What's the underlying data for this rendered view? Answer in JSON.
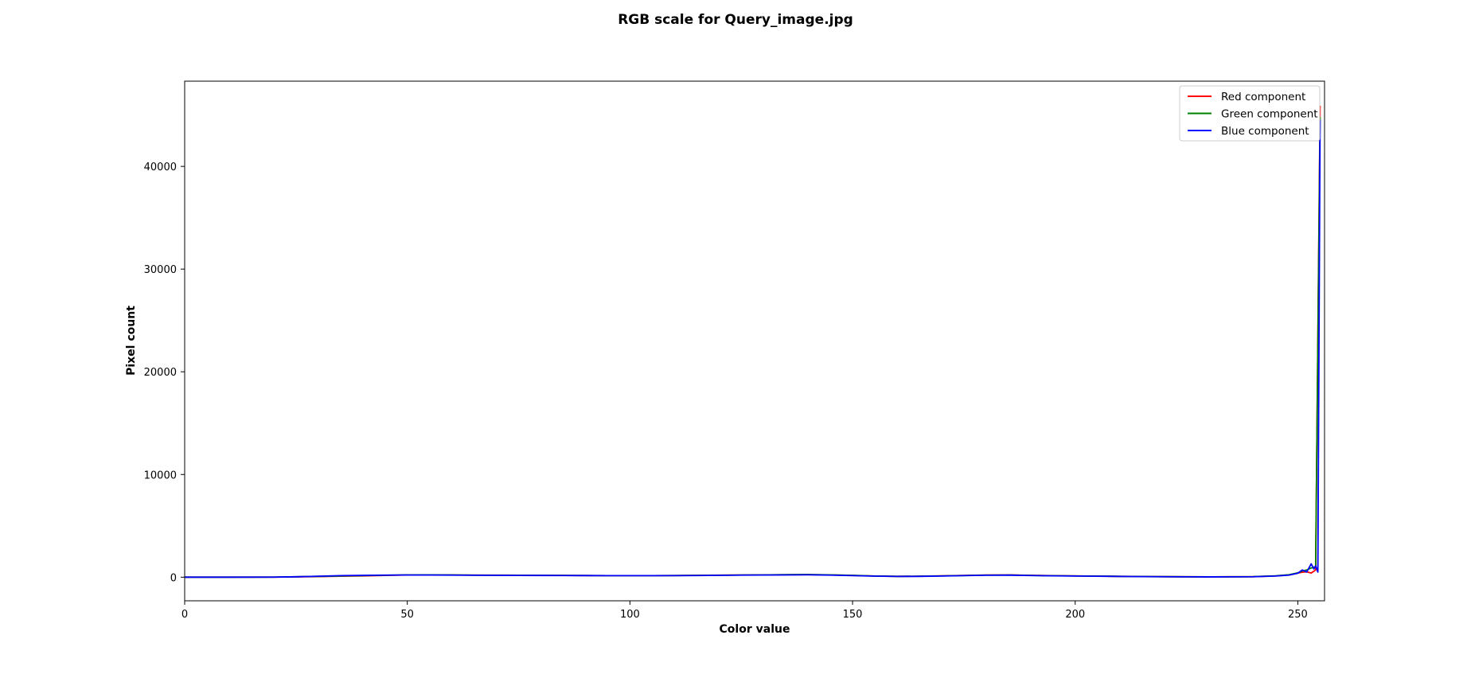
{
  "chart_data": {
    "type": "line",
    "title": "RGB scale for Query_image.jpg",
    "xlabel": "Color value",
    "ylabel": "Pixel count",
    "xlim": [
      0,
      256
    ],
    "ylim": [
      -2300,
      48300
    ],
    "xticks": [
      0,
      50,
      100,
      150,
      200,
      250
    ],
    "yticks": [
      0,
      10000,
      20000,
      30000,
      40000
    ],
    "grid": false,
    "legend_position": "top-right",
    "series": [
      {
        "name": "Red component",
        "color": "#ff0000",
        "points": [
          [
            0,
            0
          ],
          [
            10,
            0
          ],
          [
            20,
            5
          ],
          [
            25,
            30
          ],
          [
            30,
            60
          ],
          [
            35,
            90
          ],
          [
            40,
            120
          ],
          [
            45,
            170
          ],
          [
            50,
            210
          ],
          [
            55,
            220
          ],
          [
            60,
            210
          ],
          [
            65,
            200
          ],
          [
            70,
            200
          ],
          [
            75,
            190
          ],
          [
            80,
            180
          ],
          [
            85,
            170
          ],
          [
            90,
            160
          ],
          [
            95,
            150
          ],
          [
            100,
            150
          ],
          [
            105,
            150
          ],
          [
            110,
            160
          ],
          [
            115,
            180
          ],
          [
            120,
            200
          ],
          [
            125,
            210
          ],
          [
            130,
            230
          ],
          [
            135,
            240
          ],
          [
            140,
            250
          ],
          [
            145,
            220
          ],
          [
            150,
            170
          ],
          [
            155,
            110
          ],
          [
            160,
            80
          ],
          [
            165,
            90
          ],
          [
            170,
            130
          ],
          [
            175,
            170
          ],
          [
            180,
            210
          ],
          [
            185,
            220
          ],
          [
            190,
            180
          ],
          [
            195,
            150
          ],
          [
            200,
            120
          ],
          [
            205,
            100
          ],
          [
            210,
            80
          ],
          [
            215,
            70
          ],
          [
            220,
            50
          ],
          [
            225,
            40
          ],
          [
            230,
            30
          ],
          [
            235,
            40
          ],
          [
            240,
            50
          ],
          [
            245,
            120
          ],
          [
            248,
            220
          ],
          [
            250,
            400
          ],
          [
            251,
            480
          ],
          [
            252,
            520
          ],
          [
            253,
            400
          ],
          [
            254,
            700
          ],
          [
            255,
            45900
          ]
        ]
      },
      {
        "name": "Green component",
        "color": "#008000",
        "points": [
          [
            0,
            0
          ],
          [
            10,
            0
          ],
          [
            20,
            5
          ],
          [
            25,
            40
          ],
          [
            30,
            80
          ],
          [
            35,
            110
          ],
          [
            40,
            150
          ],
          [
            45,
            190
          ],
          [
            50,
            220
          ],
          [
            55,
            230
          ],
          [
            60,
            220
          ],
          [
            65,
            200
          ],
          [
            70,
            190
          ],
          [
            75,
            180
          ],
          [
            80,
            175
          ],
          [
            85,
            170
          ],
          [
            90,
            160
          ],
          [
            95,
            150
          ],
          [
            100,
            150
          ],
          [
            105,
            150
          ],
          [
            110,
            160
          ],
          [
            115,
            170
          ],
          [
            120,
            190
          ],
          [
            125,
            210
          ],
          [
            130,
            220
          ],
          [
            135,
            250
          ],
          [
            140,
            260
          ],
          [
            145,
            230
          ],
          [
            150,
            180
          ],
          [
            155,
            110
          ],
          [
            160,
            80
          ],
          [
            165,
            90
          ],
          [
            170,
            120
          ],
          [
            175,
            160
          ],
          [
            180,
            200
          ],
          [
            185,
            210
          ],
          [
            190,
            170
          ],
          [
            195,
            140
          ],
          [
            200,
            120
          ],
          [
            205,
            100
          ],
          [
            210,
            80
          ],
          [
            215,
            60
          ],
          [
            220,
            50
          ],
          [
            225,
            40
          ],
          [
            230,
            30
          ],
          [
            235,
            40
          ],
          [
            240,
            50
          ],
          [
            245,
            130
          ],
          [
            248,
            240
          ],
          [
            250,
            420
          ],
          [
            251,
            600
          ],
          [
            252,
            700
          ],
          [
            253,
            900
          ],
          [
            254,
            1000
          ],
          [
            255,
            44800
          ]
        ]
      },
      {
        "name": "Blue component",
        "color": "#0000ff",
        "points": [
          [
            0,
            0
          ],
          [
            10,
            0
          ],
          [
            20,
            5
          ],
          [
            25,
            40
          ],
          [
            30,
            90
          ],
          [
            35,
            150
          ],
          [
            40,
            180
          ],
          [
            45,
            200
          ],
          [
            50,
            210
          ],
          [
            55,
            210
          ],
          [
            60,
            200
          ],
          [
            65,
            190
          ],
          [
            70,
            180
          ],
          [
            75,
            170
          ],
          [
            80,
            165
          ],
          [
            85,
            160
          ],
          [
            90,
            155
          ],
          [
            95,
            150
          ],
          [
            100,
            150
          ],
          [
            105,
            150
          ],
          [
            110,
            150
          ],
          [
            115,
            160
          ],
          [
            120,
            180
          ],
          [
            125,
            200
          ],
          [
            130,
            210
          ],
          [
            135,
            220
          ],
          [
            140,
            230
          ],
          [
            145,
            200
          ],
          [
            150,
            150
          ],
          [
            155,
            100
          ],
          [
            160,
            70
          ],
          [
            165,
            80
          ],
          [
            170,
            110
          ],
          [
            175,
            150
          ],
          [
            180,
            190
          ],
          [
            185,
            200
          ],
          [
            190,
            160
          ],
          [
            195,
            130
          ],
          [
            200,
            110
          ],
          [
            205,
            90
          ],
          [
            210,
            70
          ],
          [
            215,
            55
          ],
          [
            220,
            45
          ],
          [
            225,
            35
          ],
          [
            230,
            30
          ],
          [
            235,
            35
          ],
          [
            240,
            45
          ],
          [
            245,
            110
          ],
          [
            248,
            200
          ],
          [
            250,
            380
          ],
          [
            251,
            700
          ],
          [
            252,
            500
          ],
          [
            253,
            1300
          ],
          [
            253.6,
            800
          ],
          [
            254,
            1100
          ],
          [
            254.5,
            500
          ],
          [
            255,
            44500
          ]
        ]
      }
    ]
  }
}
